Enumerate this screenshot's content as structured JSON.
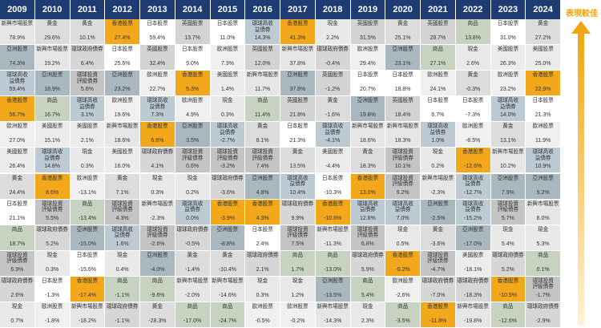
{
  "legend": {
    "label": "表現較佳"
  },
  "colors": {
    "header": "#1f3b73",
    "新興市場股票": "#e6e6e6",
    "黃金": "#dcdcdc",
    "亞洲股票": "#a9b8be",
    "環球高收益債券": "#bccad4",
    "香港股票": "#f3a81b",
    "環球投資評級債券": "#c4c4c4",
    "商品": "#c7d3c0",
    "日本股票": "#ffffff",
    "英國股票": "#d3d3d3",
    "美國股票": "#ececec",
    "歐洲股票": "#f0f0f0",
    "環球政府債券": "#d6d6d6",
    "現金": "#e9e9e9"
  },
  "chart_data": {
    "type": "table",
    "years": [
      "2009",
      "2010",
      "2011",
      "2012",
      "2013",
      "2014",
      "2015",
      "2016",
      "2017",
      "2018",
      "2019",
      "2020",
      "2021",
      "2022",
      "2023",
      "2024"
    ],
    "columns": [
      [
        {
          "asset": "新興市場股票",
          "value": "78.9%"
        },
        {
          "asset": "亞洲股票",
          "value": "74.3%"
        },
        {
          "asset": "環球高收益債券",
          "value": "59.4%"
        },
        {
          "asset": "香港股票",
          "value": "56.7%"
        },
        {
          "asset": "歐洲股票",
          "value": "27.0%"
        },
        {
          "asset": "美國股票",
          "value": "26.4%"
        },
        {
          "asset": "黃金",
          "value": "24.4%"
        },
        {
          "asset": "日本股票",
          "value": "21.1%"
        },
        {
          "asset": "商品",
          "value": "18.7%"
        },
        {
          "asset": "環球投資評級債券",
          "value": "6.9%"
        },
        {
          "asset": "環球政府債券",
          "value": "2.6%"
        },
        {
          "asset": "現金",
          "value": "0.7%"
        }
      ],
      [
        {
          "asset": "黃金",
          "value": "29.6%"
        },
        {
          "asset": "新興市場股票",
          "value": "19.2%"
        },
        {
          "asset": "亞洲股票",
          "value": "18.9%"
        },
        {
          "asset": "商品",
          "value": "16.7%"
        },
        {
          "asset": "美國股票",
          "value": "15.1%"
        },
        {
          "asset": "環球高收益債券",
          "value": "14.8%"
        },
        {
          "asset": "香港股票",
          "value": "8.6%"
        },
        {
          "asset": "環球投資評級債券",
          "value": "5.5%"
        },
        {
          "asset": "環球政府債券",
          "value": "5.2%"
        },
        {
          "asset": "現金",
          "value": "0.3%"
        },
        {
          "asset": "日本股票",
          "value": "-1.3%"
        },
        {
          "asset": "歐洲股票",
          "value": "-1.8%"
        }
      ],
      [
        {
          "asset": "黃金",
          "value": "10.1%"
        },
        {
          "asset": "環球政府債券",
          "value": "6.4%"
        },
        {
          "asset": "環球投資評級債券",
          "value": "5.6%"
        },
        {
          "asset": "環球高收益債券",
          "value": "3.1%"
        },
        {
          "asset": "美國股票",
          "value": "2.1%"
        },
        {
          "asset": "現金",
          "value": "0.3%"
        },
        {
          "asset": "歐洲股票",
          "value": "-13.1%"
        },
        {
          "asset": "商品",
          "value": "-13.4%"
        },
        {
          "asset": "亞洲股票",
          "value": "-15.0%"
        },
        {
          "asset": "日本股票",
          "value": "-15.6%"
        },
        {
          "asset": "香港股票",
          "value": "-17.4%"
        },
        {
          "asset": "新興市場股票",
          "value": "-18.2%"
        }
      ],
      [
        {
          "asset": "香港股票",
          "value": "27.4%"
        },
        {
          "asset": "日本股票",
          "value": "25.6%"
        },
        {
          "asset": "亞洲股票",
          "value": "23.2%"
        },
        {
          "asset": "歐洲股票",
          "value": "19.6%"
        },
        {
          "asset": "新興市場股票",
          "value": "18.6%"
        },
        {
          "asset": "美國股票",
          "value": "16.0%"
        },
        {
          "asset": "黃金",
          "value": "7.1%"
        },
        {
          "asset": "環球投資評級債券",
          "value": "4.3%"
        },
        {
          "asset": "環球高收益債券",
          "value": "1.6%"
        },
        {
          "asset": "現金",
          "value": "0.4%"
        },
        {
          "asset": "商品",
          "value": "-1.1%"
        },
        {
          "asset": "環球政府債券",
          "value": "-1.1%"
        }
      ],
      [
        {
          "asset": "日本股票",
          "value": "59.4%"
        },
        {
          "asset": "英國股票",
          "value": "32.4%"
        },
        {
          "asset": "歐洲股票",
          "value": "22.7%"
        },
        {
          "asset": "環球高收益債券",
          "value": "7.3%"
        },
        {
          "asset": "香港股票",
          "value": "6.6%"
        },
        {
          "asset": "環球政府債券",
          "value": "4.1%"
        },
        {
          "asset": "現金",
          "value": "0.3%"
        },
        {
          "asset": "新興市場股票",
          "value": "-2.3%"
        },
        {
          "asset": "環球投資評級債券",
          "value": "-2.6%"
        },
        {
          "asset": "亞洲股票",
          "value": "-4.0%"
        },
        {
          "asset": "商品",
          "value": "-9.6%"
        },
        {
          "asset": "黃金",
          "value": "-28.3%"
        }
      ],
      [
        {
          "asset": "英國股票",
          "value": "13.7%"
        },
        {
          "asset": "日本股票",
          "value": "9.0%"
        },
        {
          "asset": "香港股票",
          "value": "5.3%"
        },
        {
          "asset": "歐洲股票",
          "value": "4.9%"
        },
        {
          "asset": "亞洲股票",
          "value": "3.5%"
        },
        {
          "asset": "環球投資評級債券",
          "value": "0.6%"
        },
        {
          "asset": "現金",
          "value": "0.2%"
        },
        {
          "asset": "環球高收益債券",
          "value": "0.0%"
        },
        {
          "asset": "環球政府債券",
          "value": "-0.5%"
        },
        {
          "asset": "黃金",
          "value": "-1.4%"
        },
        {
          "asset": "新興市場股票",
          "value": "-2.0%"
        },
        {
          "asset": "商品",
          "value": "-17.0%"
        }
      ],
      [
        {
          "asset": "日本股票",
          "value": "11.0%"
        },
        {
          "asset": "歐洲股票",
          "value": "7.3%"
        },
        {
          "asset": "美國股票",
          "value": "1.4%"
        },
        {
          "asset": "現金",
          "value": "0.3%"
        },
        {
          "asset": "環球高收益債券",
          "value": "-2.7%"
        },
        {
          "asset": "環球投資評級債券",
          "value": "-3.2%"
        },
        {
          "asset": "環球政府債券",
          "value": "-3.6%"
        },
        {
          "asset": "香港股票",
          "value": "-3.9%"
        },
        {
          "asset": "亞洲股票",
          "value": "-8.8%"
        },
        {
          "asset": "黃金",
          "value": "-10.4%"
        },
        {
          "asset": "新興市場股票",
          "value": "-14.6%"
        },
        {
          "asset": "商品",
          "value": "-24.7%"
        }
      ],
      [
        {
          "asset": "環球高收益債券",
          "value": "14.3%"
        },
        {
          "asset": "英國股票",
          "value": "12.0%"
        },
        {
          "asset": "新興市場股票",
          "value": "11.7%"
        },
        {
          "asset": "商品",
          "value": "11.4%"
        },
        {
          "asset": "黃金",
          "value": "8.1%"
        },
        {
          "asset": "環球投資評級債券",
          "value": "7.4%"
        },
        {
          "asset": "亞洲股票",
          "value": "4.8%"
        },
        {
          "asset": "香港股票",
          "value": "4.3%"
        },
        {
          "asset": "日本股票",
          "value": "2.4%"
        },
        {
          "asset": "環球政府債券",
          "value": "2.1%"
        },
        {
          "asset": "現金",
          "value": "0.3%"
        },
        {
          "asset": "歐洲股票",
          "value": "-0.5%"
        }
      ],
      [
        {
          "asset": "香港股票",
          "value": "41.3%"
        },
        {
          "asset": "新興市場股票",
          "value": "37.8%"
        },
        {
          "asset": "亞洲股票",
          "value": "37.8%"
        },
        {
          "asset": "英國股票",
          "value": "21.8%"
        },
        {
          "asset": "日本股票",
          "value": "21.3%"
        },
        {
          "asset": "黃金",
          "value": "13.5%"
        },
        {
          "asset": "環球高收益債券",
          "value": "10.4%"
        },
        {
          "asset": "環球政府債券",
          "value": "9.9%"
        },
        {
          "asset": "環球投資評級債券",
          "value": "7.5%"
        },
        {
          "asset": "商品",
          "value": "1.7%"
        },
        {
          "asset": "現金",
          "value": "1.2%"
        },
        {
          "asset": "歐洲股票",
          "value": "-0.2%"
        }
      ],
      [
        {
          "asset": "現金",
          "value": "2.2%"
        },
        {
          "asset": "環球政府債券",
          "value": "-0.4%"
        },
        {
          "asset": "英國股票",
          "value": "-1.2%"
        },
        {
          "asset": "黃金",
          "value": "-1.6%"
        },
        {
          "asset": "環球高收益債券",
          "value": "-4.1%"
        },
        {
          "asset": "美國股票",
          "value": "-4.4%"
        },
        {
          "asset": "日本股票",
          "value": "-10.3%"
        },
        {
          "asset": "香港股票",
          "value": "-10.6%"
        },
        {
          "asset": "新興市場股票",
          "value": "-11.3%"
        },
        {
          "asset": "商品",
          "value": "-13.0%"
        },
        {
          "asset": "亞洲股票",
          "value": "-13.5%"
        },
        {
          "asset": "新興市場股票",
          "value": "-14.3%"
        }
      ],
      [
        {
          "asset": "英國股票",
          "value": "31.5%"
        },
        {
          "asset": "歐洲股票",
          "value": "29.4%"
        },
        {
          "asset": "日本股票",
          "value": "20.7%"
        },
        {
          "asset": "亞洲股票",
          "value": "19.8%"
        },
        {
          "asset": "新興市場股票",
          "value": "18.6%"
        },
        {
          "asset": "黃金",
          "value": "18.3%"
        },
        {
          "asset": "香港股票",
          "value": "13.0%"
        },
        {
          "asset": "環球高收益債券",
          "value": "12.6%"
        },
        {
          "asset": "環球投資評級債券",
          "value": "6.8%"
        },
        {
          "asset": "環球政府債券",
          "value": "5.9%"
        },
        {
          "asset": "商品",
          "value": "5.4%"
        },
        {
          "asset": "現金",
          "value": "2.3%"
        }
      ],
      [
        {
          "asset": "黃金",
          "value": "25.1%"
        },
        {
          "asset": "亞洲股票",
          "value": "23.1%"
        },
        {
          "asset": "日本股票",
          "value": "18.8%"
        },
        {
          "asset": "英國股票",
          "value": "18.4%"
        },
        {
          "asset": "新興市場股票",
          "value": "18.3%"
        },
        {
          "asset": "環球投資評級債券",
          "value": "10.1%"
        },
        {
          "asset": "環球投資評級債券",
          "value": "9.2%"
        },
        {
          "asset": "環球高收益債券",
          "value": "7.0%"
        },
        {
          "asset": "現金",
          "value": "0.5%"
        },
        {
          "asset": "香港股票",
          "value": "-0.2%"
        },
        {
          "asset": "歐洲股票",
          "value": "-2.6%"
        },
        {
          "asset": "商品",
          "value": "-3.5%"
        }
      ],
      [
        {
          "asset": "英國股票",
          "value": "28.7%"
        },
        {
          "asset": "商品",
          "value": "27.1%"
        },
        {
          "asset": "歐洲股票",
          "value": "24.1%"
        },
        {
          "asset": "日本股票",
          "value": "6.7%"
        },
        {
          "asset": "環球高收益債券",
          "value": "1.0%"
        },
        {
          "asset": "現金",
          "value": "0.2%"
        },
        {
          "asset": "新興市場股票",
          "value": "-2.3%"
        },
        {
          "asset": "亞洲股票",
          "value": "-2.5%"
        },
        {
          "asset": "黃金",
          "value": "-3.6%"
        },
        {
          "asset": "環球投資評級債券",
          "value": "-4.7%"
        },
        {
          "asset": "環球政府債券",
          "value": "-7.0%"
        },
        {
          "asset": "香港股票",
          "value": "-11.8%"
        }
      ],
      [
        {
          "asset": "商品",
          "value": "13.8%"
        },
        {
          "asset": "現金",
          "value": "2.6%"
        },
        {
          "asset": "黃金",
          "value": "-0.3%"
        },
        {
          "asset": "日本股票",
          "value": "-7.3%"
        },
        {
          "asset": "歐洲股票",
          "value": "-8.5%"
        },
        {
          "asset": "香港股票",
          "value": "-12.6%"
        },
        {
          "asset": "環球高收益債券",
          "value": "-12.7%"
        },
        {
          "asset": "環球高收益債券",
          "value": "-15.2%"
        },
        {
          "asset": "亞洲股票",
          "value": "-17.0%"
        },
        {
          "asset": "美國股票",
          "value": "-18.1%"
        },
        {
          "asset": "環球政府債券",
          "value": "-18.3%"
        },
        {
          "asset": "新興市場股票",
          "value": "-19.8%"
        }
      ],
      [
        {
          "asset": "日本股票",
          "value": "31.0%"
        },
        {
          "asset": "美國股票",
          "value": "26.3%"
        },
        {
          "asset": "歐洲股票",
          "value": "23.2%"
        },
        {
          "asset": "環球高收益債券",
          "value": "14.0%"
        },
        {
          "asset": "黃金",
          "value": "13.1%"
        },
        {
          "asset": "新興市場股票",
          "value": "10.2%"
        },
        {
          "asset": "亞洲股票",
          "value": "7.9%"
        },
        {
          "asset": "環球投資評級債券",
          "value": "5.7%"
        },
        {
          "asset": "現金",
          "value": "5.4%"
        },
        {
          "asset": "環球政府債券",
          "value": "5.2%"
        },
        {
          "asset": "香港股票",
          "value": "-10.5%"
        },
        {
          "asset": "商品",
          "value": "-12.6%"
        }
      ],
      [
        {
          "asset": "黃金",
          "value": "27.2%"
        },
        {
          "asset": "美國股票",
          "value": "25.0%"
        },
        {
          "asset": "香港股票",
          "value": "22.9%"
        },
        {
          "asset": "日本股票",
          "value": "21.3%"
        },
        {
          "asset": "歐洲股票",
          "value": "11.9%"
        },
        {
          "asset": "環球高收益債券",
          "value": "10.9%"
        },
        {
          "asset": "亞洲股票",
          "value": "9.2%"
        },
        {
          "asset": "新興市場股票",
          "value": "8.0%"
        },
        {
          "asset": "現金",
          "value": "5.3%"
        },
        {
          "asset": "商品",
          "value": "0.1%"
        },
        {
          "asset": "環球投資評級債券",
          "value": "-1.7%"
        },
        {
          "asset": "環球政府債券",
          "value": "-2.9%"
        }
      ]
    ]
  }
}
